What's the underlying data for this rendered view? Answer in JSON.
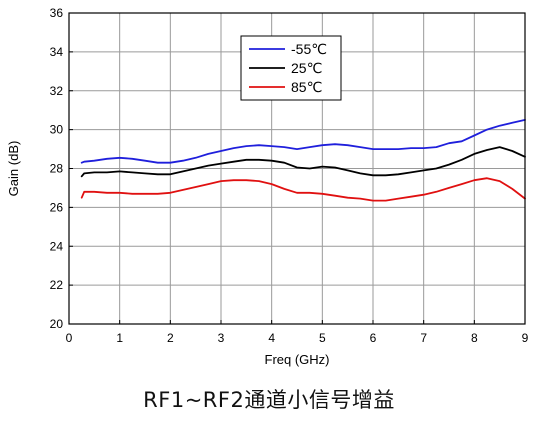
{
  "caption": "RF1~RF2通道小信号增益",
  "chart_data": {
    "type": "line",
    "title": "",
    "xlabel": "Freq (GHz)",
    "ylabel": "Gain (dB)",
    "xlim": [
      0,
      9
    ],
    "ylim": [
      20,
      36
    ],
    "xticks": [
      0,
      1,
      2,
      3,
      4,
      5,
      6,
      7,
      8,
      9
    ],
    "yticks": [
      20,
      22,
      24,
      26,
      28,
      30,
      32,
      34,
      36
    ],
    "grid": true,
    "legend_position": "top-center",
    "series": [
      {
        "name": "-55℃",
        "color": "#1f1fdc",
        "x": [
          0.25,
          0.3,
          0.5,
          0.75,
          1.0,
          1.25,
          1.5,
          1.75,
          2.0,
          2.25,
          2.5,
          2.75,
          3.0,
          3.25,
          3.5,
          3.75,
          4.0,
          4.25,
          4.5,
          4.75,
          5.0,
          5.25,
          5.5,
          5.75,
          6.0,
          6.25,
          6.5,
          6.75,
          7.0,
          7.25,
          7.5,
          7.75,
          8.0,
          8.25,
          8.5,
          8.75,
          9.0
        ],
        "y": [
          28.3,
          28.35,
          28.4,
          28.5,
          28.55,
          28.5,
          28.4,
          28.3,
          28.3,
          28.4,
          28.55,
          28.75,
          28.9,
          29.05,
          29.15,
          29.2,
          29.15,
          29.1,
          29.0,
          29.1,
          29.2,
          29.25,
          29.2,
          29.1,
          29.0,
          29.0,
          29.0,
          29.05,
          29.05,
          29.1,
          29.3,
          29.4,
          29.7,
          30.0,
          30.2,
          30.35,
          30.5
        ]
      },
      {
        "name": "25℃",
        "color": "#000000",
        "x": [
          0.25,
          0.3,
          0.5,
          0.75,
          1.0,
          1.25,
          1.5,
          1.75,
          2.0,
          2.25,
          2.5,
          2.75,
          3.0,
          3.25,
          3.5,
          3.75,
          4.0,
          4.25,
          4.5,
          4.75,
          5.0,
          5.25,
          5.5,
          5.75,
          6.0,
          6.25,
          6.5,
          6.75,
          7.0,
          7.25,
          7.5,
          7.75,
          8.0,
          8.25,
          8.5,
          8.75,
          9.0
        ],
        "y": [
          27.6,
          27.75,
          27.8,
          27.8,
          27.85,
          27.8,
          27.75,
          27.7,
          27.7,
          27.85,
          28.0,
          28.15,
          28.25,
          28.35,
          28.45,
          28.45,
          28.4,
          28.3,
          28.05,
          28.0,
          28.1,
          28.05,
          27.9,
          27.75,
          27.65,
          27.65,
          27.7,
          27.8,
          27.9,
          28.0,
          28.2,
          28.45,
          28.75,
          28.95,
          29.1,
          28.9,
          28.6
        ]
      },
      {
        "name": "85℃",
        "color": "#e01010",
        "x": [
          0.25,
          0.3,
          0.5,
          0.75,
          1.0,
          1.25,
          1.5,
          1.75,
          2.0,
          2.25,
          2.5,
          2.75,
          3.0,
          3.25,
          3.5,
          3.75,
          4.0,
          4.25,
          4.5,
          4.75,
          5.0,
          5.25,
          5.5,
          5.75,
          6.0,
          6.25,
          6.5,
          6.75,
          7.0,
          7.25,
          7.5,
          7.75,
          8.0,
          8.25,
          8.5,
          8.75,
          9.0
        ],
        "y": [
          26.5,
          26.8,
          26.8,
          26.75,
          26.75,
          26.7,
          26.7,
          26.7,
          26.75,
          26.9,
          27.05,
          27.2,
          27.35,
          27.4,
          27.4,
          27.35,
          27.2,
          26.95,
          26.75,
          26.75,
          26.7,
          26.6,
          26.5,
          26.45,
          26.35,
          26.35,
          26.45,
          26.55,
          26.65,
          26.8,
          27.0,
          27.2,
          27.4,
          27.5,
          27.35,
          26.95,
          26.45
        ]
      }
    ]
  }
}
